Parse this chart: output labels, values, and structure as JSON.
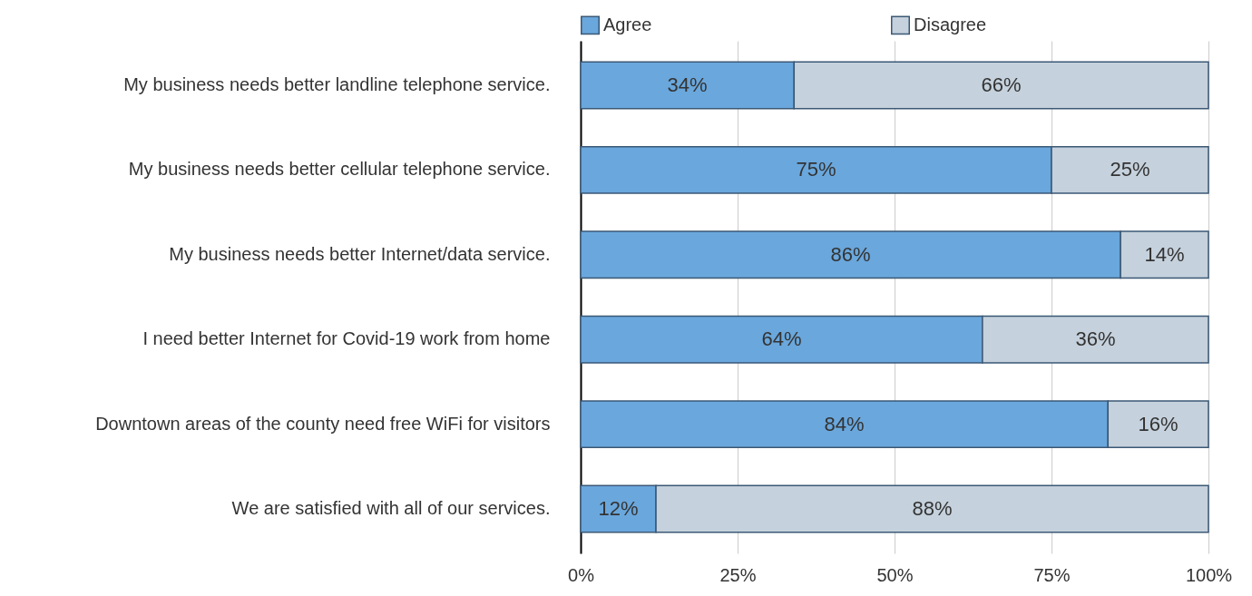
{
  "chart_data": {
    "type": "bar",
    "orientation": "horizontal",
    "stacked": true,
    "categories": [
      "My business needs better landline telephone service.",
      "My business needs better cellular telephone service.",
      "My business needs better Internet/data service.",
      "I need better Internet for Covid-19 work from home",
      "Downtown areas of the county need free WiFi for visitors",
      "We are satisfied with all of our services."
    ],
    "series": [
      {
        "name": "Agree",
        "color": "#6aa7dc",
        "values": [
          34,
          75,
          86,
          64,
          84,
          12
        ],
        "value_labels": [
          "34%",
          "75%",
          "86%",
          "64%",
          "84%",
          "12%"
        ]
      },
      {
        "name": "Disagree",
        "color": "#c5d1dc",
        "values": [
          66,
          25,
          14,
          36,
          16,
          88
        ],
        "value_labels": [
          "66%",
          "25%",
          "14%",
          "36%",
          "16%",
          "88%"
        ]
      }
    ],
    "xlim": [
      0,
      100
    ],
    "xticks": [
      {
        "value": 0,
        "label": "0%"
      },
      {
        "value": 25,
        "label": "25%"
      },
      {
        "value": 50,
        "label": "50%"
      },
      {
        "value": 75,
        "label": "75%"
      },
      {
        "value": 100,
        "label": "100%"
      }
    ],
    "grid": "x",
    "legend": "top"
  }
}
